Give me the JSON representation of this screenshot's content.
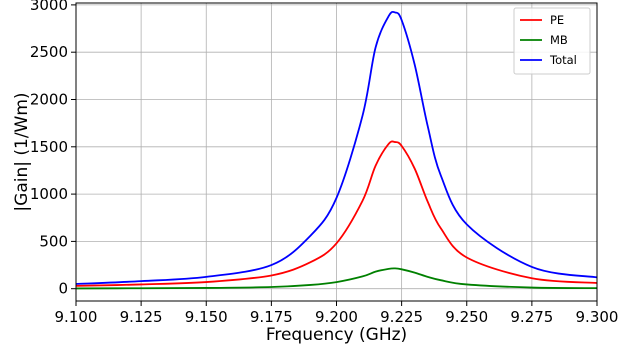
{
  "chart_data": {
    "type": "line",
    "title": "",
    "xlabel": "Frequency (GHz)",
    "ylabel": "|Gain| (1/Wm)",
    "xlim": [
      9.1,
      9.3
    ],
    "ylim": [
      -130,
      3020
    ],
    "xticks": [
      9.1,
      9.125,
      9.15,
      9.175,
      9.2,
      9.225,
      9.25,
      9.275,
      9.3
    ],
    "xtick_labels": [
      "9.100",
      "9.125",
      "9.150",
      "9.175",
      "9.200",
      "9.225",
      "9.250",
      "9.275",
      "9.300"
    ],
    "yticks": [
      0,
      500,
      1000,
      1500,
      2000,
      2500,
      3000
    ],
    "ytick_labels": [
      "0",
      "500",
      "1000",
      "1500",
      "2000",
      "2500",
      "3000"
    ],
    "grid": true,
    "legend_position": "top-right",
    "x": [
      9.1,
      9.125,
      9.15,
      9.175,
      9.19,
      9.2,
      9.21,
      9.215,
      9.22,
      9.2225,
      9.225,
      9.23,
      9.235,
      9.24,
      9.25,
      9.275,
      9.3
    ],
    "series": [
      {
        "name": "PE",
        "color": "#ff0000",
        "values": [
          30,
          45,
          70,
          140,
          280,
          480,
          930,
          1300,
          1530,
          1550,
          1510,
          1270,
          920,
          640,
          330,
          110,
          60
        ]
      },
      {
        "name": "MB",
        "color": "#008000",
        "values": [
          3,
          5,
          8,
          18,
          40,
          70,
          130,
          180,
          210,
          215,
          205,
          170,
          125,
          90,
          45,
          12,
          6
        ]
      },
      {
        "name": "Total",
        "color": "#0000ff",
        "values": [
          50,
          80,
          125,
          250,
          560,
          960,
          1830,
          2550,
          2880,
          2920,
          2840,
          2370,
          1720,
          1200,
          680,
          230,
          120
        ]
      }
    ]
  }
}
